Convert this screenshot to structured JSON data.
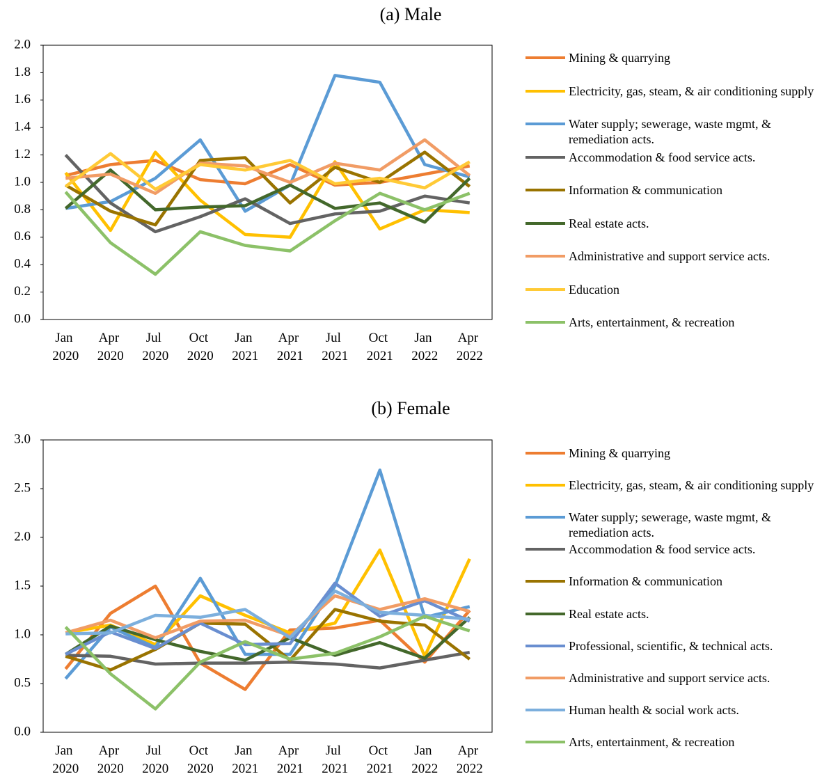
{
  "chart_data": [
    {
      "type": "line",
      "title": "(a) Male",
      "categories": [
        "Jan 2020",
        "Apr 2020",
        "Jul 2020",
        "Oct 2020",
        "Jan 2021",
        "Apr 2021",
        "Jul 2021",
        "Oct 2021",
        "Jan 2022",
        "Apr 2022"
      ],
      "ylim": [
        0,
        2
      ],
      "yticks": [
        {
          "value": 0,
          "label": "0.0"
        },
        0.2,
        0.4,
        0.6,
        0.8,
        {
          "value": 1,
          "label": "1.0"
        },
        1.2,
        1.4,
        1.6,
        1.8,
        {
          "value": 2,
          "label": "2.0"
        }
      ],
      "legend": "right",
      "series": [
        {
          "name": "Mining & quarrying",
          "color": "#ED7D31",
          "values": [
            1.05,
            1.13,
            1.16,
            1.02,
            0.99,
            1.13,
            0.98,
            1.0,
            1.06,
            1.12
          ]
        },
        {
          "name": "Electricity, gas, steam, & air conditioning supply",
          "color": "#FFC000",
          "values": [
            1.07,
            0.65,
            1.22,
            0.87,
            0.62,
            0.6,
            1.15,
            0.66,
            0.8,
            0.78
          ]
        },
        {
          "name": "Water supply; sewerage, waste mgmt, & remediation acts.",
          "color": "#5B9BD5",
          "values": [
            0.81,
            0.86,
            1.03,
            1.31,
            0.79,
            0.98,
            1.78,
            1.73,
            1.13,
            1.04
          ]
        },
        {
          "name": "Accommodation & food service acts.",
          "color": "#636363",
          "values": [
            1.2,
            0.85,
            0.64,
            0.75,
            0.88,
            0.7,
            0.77,
            0.79,
            0.9,
            0.85
          ]
        },
        {
          "name": "Information & communication",
          "color": "#997300",
          "values": [
            0.98,
            0.79,
            0.69,
            1.16,
            1.18,
            0.85,
            1.11,
            1.0,
            1.22,
            0.97
          ]
        },
        {
          "name": "Real estate acts.",
          "color": "#43682B",
          "values": [
            0.81,
            1.09,
            0.8,
            0.82,
            0.83,
            0.98,
            0.81,
            0.85,
            0.71,
            1.03
          ]
        },
        {
          "name": "Administrative and support service acts.",
          "color": "#F19C65",
          "values": [
            1.03,
            1.06,
            0.92,
            1.14,
            1.12,
            1.0,
            1.14,
            1.09,
            1.31,
            1.05
          ]
        },
        {
          "name": "Education",
          "color": "#FFCA36",
          "values": [
            0.97,
            1.21,
            0.95,
            1.13,
            1.09,
            1.16,
            0.99,
            1.03,
            0.96,
            1.15
          ]
        },
        {
          "name": "Arts, entertainment, & recreation",
          "color": "#8CC168",
          "values": [
            0.93,
            0.56,
            0.33,
            0.64,
            0.54,
            0.5,
            0.72,
            0.92,
            0.8,
            0.92
          ]
        }
      ]
    },
    {
      "type": "line",
      "title": "(b) Female",
      "categories": [
        "Jan 2020",
        "Apr 2020",
        "Jul 2020",
        "Oct 2020",
        "Jan 2021",
        "Apr 2021",
        "Jul 2021",
        "Oct 2021",
        "Jan 2022",
        "Apr 2022"
      ],
      "ylim": [
        0,
        3
      ],
      "yticks": [
        {
          "value": 0,
          "label": "0.0"
        },
        0.5,
        {
          "value": 1,
          "label": "1.0"
        },
        1.5,
        {
          "value": 2,
          "label": "2.0"
        },
        2.5,
        {
          "value": 3,
          "label": "3.0"
        }
      ],
      "legend": "right",
      "series": [
        {
          "name": "Mining & quarrying",
          "color": "#ED7D31",
          "values": [
            0.65,
            1.22,
            1.5,
            0.71,
            0.44,
            1.05,
            1.07,
            1.15,
            0.72,
            1.25
          ]
        },
        {
          "name": "Electricity, gas, steam, & air conditioning supply",
          "color": "#FFC000",
          "values": [
            1.02,
            1.1,
            0.9,
            1.4,
            1.2,
            1.02,
            1.12,
            1.87,
            0.78,
            1.78
          ]
        },
        {
          "name": "Water supply; sewerage, waste mgmt, & remediation acts.",
          "color": "#5B9BD5",
          "values": [
            0.55,
            1.08,
            0.87,
            1.58,
            0.8,
            0.8,
            1.5,
            2.69,
            1.18,
            1.29
          ]
        },
        {
          "name": "Accommodation & food service acts.",
          "color": "#636363",
          "values": [
            0.79,
            0.78,
            0.7,
            0.71,
            0.71,
            0.72,
            0.7,
            0.66,
            0.74,
            0.82
          ]
        },
        {
          "name": "Information & communication",
          "color": "#997300",
          "values": [
            0.78,
            0.64,
            0.85,
            1.12,
            1.11,
            0.74,
            1.26,
            1.14,
            1.1,
            0.75
          ]
        },
        {
          "name": "Real estate acts.",
          "color": "#43682B",
          "values": [
            0.8,
            1.09,
            0.95,
            0.83,
            0.74,
            0.97,
            0.79,
            0.92,
            0.76,
            1.18
          ]
        },
        {
          "name": "Professional, scientific, & technical acts.",
          "color": "#698ED0",
          "values": [
            0.8,
            1.03,
            0.86,
            1.12,
            0.9,
            0.91,
            1.53,
            1.19,
            1.35,
            1.14
          ]
        },
        {
          "name": "Administrative and support service acts.",
          "color": "#F19C65",
          "values": [
            1.02,
            1.15,
            0.97,
            1.14,
            1.15,
            0.99,
            1.4,
            1.26,
            1.37,
            1.24
          ]
        },
        {
          "name": "Human health & social work acts.",
          "color": "#7CAFDD",
          "values": [
            1.01,
            1.02,
            1.2,
            1.18,
            1.26,
            0.97,
            1.45,
            1.23,
            1.2,
            1.16
          ]
        },
        {
          "name": "Arts, entertainment, & recreation",
          "color": "#8CC168",
          "values": [
            1.08,
            0.6,
            0.24,
            0.72,
            0.93,
            0.75,
            0.81,
            0.98,
            1.19,
            1.04
          ]
        }
      ]
    }
  ]
}
